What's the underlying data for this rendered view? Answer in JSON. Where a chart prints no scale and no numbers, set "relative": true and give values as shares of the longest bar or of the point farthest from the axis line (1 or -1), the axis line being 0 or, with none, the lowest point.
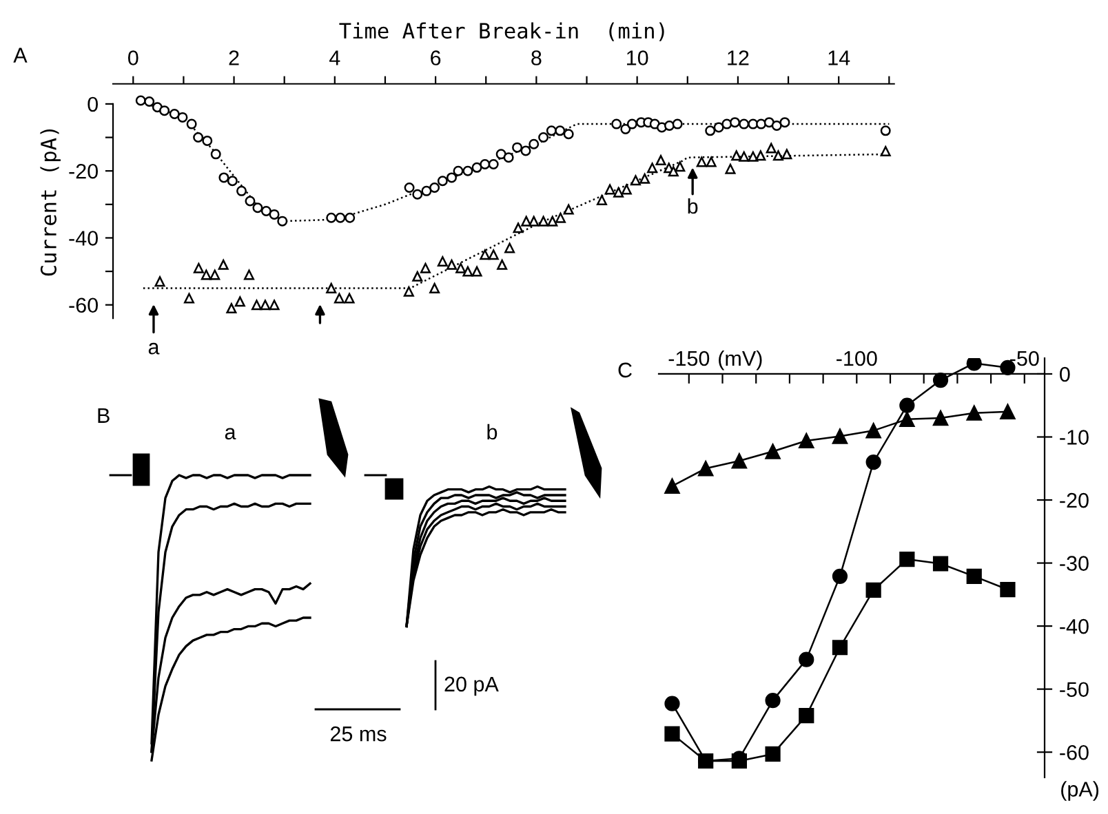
{
  "chart_data": [
    {
      "type": "scatter",
      "xlabel": "Time After Break-in  (min)",
      "ylabel": "Current (pA)",
      "xlim": [
        -0.4,
        15.1
      ],
      "ylim": [
        -64,
        6
      ],
      "xticks": [
        0,
        {
          "value": 1,
          "label": null
        },
        2,
        {
          "value": 3,
          "label": null
        },
        4,
        {
          "value": 5,
          "label": null
        },
        6,
        {
          "value": 7,
          "label": null
        },
        8,
        {
          "value": 9,
          "label": null
        },
        10,
        {
          "value": 11,
          "label": null
        },
        12,
        {
          "value": 13,
          "label": null
        },
        14,
        {
          "value": 15,
          "label": null
        }
      ],
      "yticks": [
        0,
        {
          "value": -10,
          "label": null
        },
        -20,
        {
          "value": -30,
          "label": null
        },
        -40,
        {
          "value": -50,
          "label": null
        },
        -60
      ],
      "grid": false,
      "series": [
        {
          "type": "scatter",
          "marker": "circle",
          "color": "#000000",
          "x": [
            0.15,
            0.32,
            0.48,
            0.62,
            0.82,
            0.98,
            1.16,
            1.29,
            1.47,
            1.64,
            1.8,
            1.97,
            2.15,
            2.32,
            2.47,
            2.64,
            2.8,
            2.96,
            3.93,
            4.11,
            4.3,
            5.48,
            5.64,
            5.82,
            5.98,
            6.14,
            6.32,
            6.45,
            6.64,
            6.82,
            6.98,
            7.15,
            7.3,
            7.45,
            7.62,
            7.79,
            7.95,
            8.14,
            8.3,
            8.47,
            8.64,
            9.59,
            9.77,
            9.9,
            10.08,
            10.22,
            10.35,
            10.49,
            10.64,
            10.8,
            11.45,
            11.62,
            11.78,
            11.94,
            12.12,
            12.3,
            12.46,
            12.62,
            12.77,
            12.93,
            14.93
          ],
          "values": [
            1,
            0.7,
            -1,
            -2,
            -3,
            -4,
            -6,
            -10,
            -11,
            -15,
            -22,
            -23,
            -26,
            -29,
            -31,
            -32,
            -33,
            -35,
            -34,
            -34,
            -34,
            -25,
            -27,
            -26,
            -25,
            -23,
            -22,
            -20,
            -20,
            -19,
            -18,
            -18,
            -15,
            -16,
            -13,
            -14,
            -12,
            -10,
            -8,
            -8,
            -9,
            -6,
            -7.5,
            -6,
            -5.5,
            -5.5,
            -6,
            -7,
            -6.5,
            -6,
            -8,
            -7,
            -6,
            -5.5,
            -6,
            -6,
            -6,
            -5.5,
            -6.5,
            -5.5,
            -8
          ]
        },
        {
          "type": "scatter",
          "marker": "triangle",
          "color": "#000000",
          "x": [
            0.53,
            1.11,
            1.3,
            1.45,
            1.62,
            1.79,
            1.95,
            2.12,
            2.3,
            2.45,
            2.62,
            2.8,
            3.93,
            4.09,
            4.29,
            5.47,
            5.64,
            5.8,
            5.98,
            6.14,
            6.32,
            6.5,
            6.64,
            6.82,
            6.98,
            7.15,
            7.32,
            7.47,
            7.64,
            7.8,
            7.95,
            8.14,
            8.32,
            8.48,
            8.64,
            9.3,
            9.46,
            9.63,
            9.79,
            9.97,
            10.15,
            10.3,
            10.47,
            10.63,
            10.72,
            10.85,
            11.28,
            11.47,
            11.85,
            11.97,
            12.12,
            12.3,
            12.45,
            12.66,
            12.8,
            12.97,
            14.93
          ],
          "values": [
            -53,
            -58,
            -49,
            -51,
            -51,
            -48,
            -61,
            -59,
            -51,
            -60,
            -60,
            -60,
            -55,
            -58,
            -58,
            -56,
            -51.5,
            -49,
            -55,
            -47,
            -48,
            -49,
            -50,
            -50,
            -45,
            -45,
            -48,
            -43,
            -37,
            -35,
            -35,
            -35,
            -35,
            -34,
            -31.5,
            -28.7,
            -25.5,
            -26.4,
            -25.5,
            -22.8,
            -22.3,
            -19.1,
            -16.8,
            -19.1,
            -20.1,
            -18.7,
            -17.3,
            -17.3,
            -19.4,
            -15.4,
            -15.7,
            -15.7,
            -15.4,
            -13.2,
            -15.4,
            -15,
            -14.1
          ]
        },
        {
          "type": "line",
          "marker": "none",
          "line_style": "dotted",
          "color": "#000000",
          "x": [
            0.1,
            1,
            1.6,
            2.5,
            3,
            4,
            5,
            6,
            7,
            8,
            8.8,
            15
          ],
          "values": [
            1,
            -4,
            -14,
            -31,
            -35,
            -34.5,
            -30,
            -24,
            -18,
            -12,
            -6,
            -6
          ]
        },
        {
          "type": "line",
          "marker": "none",
          "line_style": "dotted",
          "color": "#000000",
          "x": [
            0.2,
            5.5,
            8,
            10.9,
            11,
            15
          ],
          "values": [
            -55,
            -55,
            -36,
            -17,
            -16,
            -15
          ]
        }
      ],
      "annotations": [
        "A",
        "a",
        "b"
      ]
    },
    {
      "type": "line",
      "relative": true,
      "marker": "none",
      "line_style": "solid",
      "categories": [
        null,
        null,
        null,
        null,
        null,
        null,
        null,
        null,
        null,
        null,
        null,
        null,
        null,
        null,
        null,
        null,
        null,
        null,
        null,
        null,
        null,
        null,
        null,
        null,
        null,
        null,
        null,
        null,
        null,
        null,
        null,
        null,
        null,
        null,
        null,
        null,
        null,
        null,
        null,
        null,
        null,
        null,
        null,
        null,
        null,
        null,
        null,
        null,
        null,
        null,
        null,
        null,
        null,
        null,
        null,
        null,
        null,
        null,
        null,
        null,
        null
      ],
      "series": [
        {
          "color": "#000000",
          "values": [
            0.06,
            0.73,
            0.92,
            0.98,
            1,
            0.99,
            1,
            1,
            0.99,
            1,
            1,
            0.99,
            1,
            1,
            1,
            0.99,
            1,
            1,
            1,
            0.99,
            1,
            1,
            1,
            1,
            null,
            null,
            null,
            null,
            null,
            null,
            null,
            null,
            null,
            null,
            null,
            null,
            null,
            null,
            null,
            null,
            null,
            null,
            null,
            null,
            null,
            null,
            null,
            null,
            null,
            null,
            null,
            null,
            null,
            null,
            null,
            null,
            null,
            null,
            null,
            null,
            null
          ]
        },
        {
          "color": "#000000",
          "values": [
            0.03,
            0.52,
            0.73,
            0.82,
            0.86,
            0.88,
            0.88,
            0.89,
            0.89,
            0.88,
            0.89,
            0.89,
            0.9,
            0.89,
            0.89,
            0.9,
            0.89,
            0.89,
            0.9,
            0.9,
            0.89,
            0.9,
            0.9,
            0.9,
            null,
            null,
            null,
            null,
            null,
            null,
            null,
            null,
            null,
            null,
            null,
            null,
            null,
            null,
            null,
            null,
            null,
            null,
            null,
            null,
            null,
            null,
            null,
            null,
            null,
            null,
            null,
            null,
            null,
            null,
            null,
            null,
            null,
            null,
            null,
            null,
            null
          ]
        },
        {
          "color": "#000000",
          "values": [
            0.03,
            0.29,
            0.43,
            0.5,
            0.54,
            0.57,
            0.58,
            0.58,
            0.59,
            0.58,
            0.59,
            0.6,
            0.59,
            0.58,
            0.59,
            0.6,
            0.6,
            0.59,
            0.55,
            0.6,
            0.6,
            0.61,
            0.6,
            0.62,
            null,
            null,
            null,
            null,
            null,
            null,
            null,
            null,
            null,
            null,
            null,
            null,
            null,
            null,
            null,
            null,
            null,
            null,
            null,
            null,
            null,
            null,
            null,
            null,
            null,
            null,
            null,
            null,
            null,
            null,
            null,
            null,
            null,
            null,
            null,
            null,
            null
          ]
        },
        {
          "color": "#000000",
          "values": [
            0,
            0.16,
            0.26,
            0.32,
            0.37,
            0.4,
            0.42,
            0.43,
            0.44,
            0.44,
            0.45,
            0.45,
            0.46,
            0.46,
            0.47,
            0.47,
            0.48,
            0.48,
            0.47,
            0.48,
            0.49,
            0.49,
            0.5,
            0.5,
            null,
            null,
            null,
            null,
            null,
            null,
            null,
            null,
            null,
            null,
            null,
            null,
            null,
            null,
            null,
            null,
            null,
            null,
            null,
            null,
            null,
            null,
            null,
            null,
            null,
            null,
            null,
            null,
            null,
            null,
            null,
            null,
            null,
            null,
            null,
            null,
            null
          ]
        },
        {
          "color": "#000000",
          "values": [
            null,
            null,
            null,
            null,
            null,
            null,
            null,
            null,
            null,
            null,
            null,
            null,
            null,
            null,
            null,
            null,
            null,
            null,
            null,
            null,
            null,
            null,
            null,
            null,
            null,
            null,
            null,
            null,
            null,
            null,
            null,
            null,
            null,
            null,
            null,
            null,
            null,
            0.47,
            0.74,
            0.86,
            0.91,
            0.93,
            0.94,
            0.95,
            0.95,
            0.95,
            0.94,
            0.95,
            0.95,
            0.96,
            0.95,
            0.95,
            0.94,
            0.95,
            0.95,
            0.95,
            0.96,
            0.95,
            0.95,
            0.95,
            0.95
          ]
        },
        {
          "color": "#000000",
          "values": [
            null,
            null,
            null,
            null,
            null,
            null,
            null,
            null,
            null,
            null,
            null,
            null,
            null,
            null,
            null,
            null,
            null,
            null,
            null,
            null,
            null,
            null,
            null,
            null,
            null,
            null,
            null,
            null,
            null,
            null,
            null,
            null,
            null,
            null,
            null,
            null,
            null,
            0.47,
            0.7,
            0.82,
            0.87,
            0.9,
            0.92,
            0.92,
            0.93,
            0.93,
            0.92,
            0.93,
            0.93,
            0.93,
            0.92,
            0.93,
            0.93,
            0.94,
            0.93,
            0.93,
            0.92,
            0.93,
            0.93,
            0.93,
            0.93
          ]
        },
        {
          "color": "#000000",
          "values": [
            null,
            null,
            null,
            null,
            null,
            null,
            null,
            null,
            null,
            null,
            null,
            null,
            null,
            null,
            null,
            null,
            null,
            null,
            null,
            null,
            null,
            null,
            null,
            null,
            null,
            null,
            null,
            null,
            null,
            null,
            null,
            null,
            null,
            null,
            null,
            null,
            null,
            0.47,
            0.67,
            0.78,
            0.84,
            0.87,
            0.89,
            0.9,
            0.9,
            0.91,
            0.91,
            0.9,
            0.91,
            0.91,
            0.91,
            0.92,
            0.91,
            0.91,
            0.9,
            0.91,
            0.91,
            0.92,
            0.91,
            0.91,
            0.91
          ]
        },
        {
          "color": "#000000",
          "values": [
            null,
            null,
            null,
            null,
            null,
            null,
            null,
            null,
            null,
            null,
            null,
            null,
            null,
            null,
            null,
            null,
            null,
            null,
            null,
            null,
            null,
            null,
            null,
            null,
            null,
            null,
            null,
            null,
            null,
            null,
            null,
            null,
            null,
            null,
            null,
            null,
            null,
            0.47,
            0.65,
            0.75,
            0.81,
            0.84,
            0.86,
            0.87,
            0.88,
            0.89,
            0.89,
            0.88,
            0.89,
            0.89,
            0.9,
            0.89,
            0.89,
            0.88,
            0.89,
            0.89,
            0.9,
            0.89,
            0.89,
            0.89,
            0.89
          ]
        },
        {
          "color": "#000000",
          "values": [
            null,
            null,
            null,
            null,
            null,
            null,
            null,
            null,
            null,
            null,
            null,
            null,
            null,
            null,
            null,
            null,
            null,
            null,
            null,
            null,
            null,
            null,
            null,
            null,
            null,
            null,
            null,
            null,
            null,
            null,
            null,
            null,
            null,
            null,
            null,
            null,
            null,
            0.47,
            0.63,
            0.72,
            0.78,
            0.82,
            0.84,
            0.85,
            0.86,
            0.86,
            0.87,
            0.87,
            0.86,
            0.87,
            0.87,
            0.88,
            0.87,
            0.87,
            0.86,
            0.87,
            0.87,
            0.87,
            0.88,
            0.87,
            0.87
          ]
        }
      ],
      "annotations": [
        "B",
        "a",
        "b",
        "20 pA",
        "25 ms"
      ]
    },
    {
      "type": "line",
      "xlabel": "(mV)",
      "ylabel": "(pA)",
      "x": [
        -155,
        -145,
        -135,
        -125,
        -115,
        -105,
        -95,
        -85,
        -75,
        -65,
        -55
      ],
      "xlim": [
        -159,
        -44
      ],
      "ylim": [
        -64,
        2.5
      ],
      "xticks": [
        -150,
        {
          "value": -140,
          "label": null
        },
        {
          "value": -130,
          "label": null
        },
        {
          "value": -120,
          "label": null
        },
        {
          "value": -110,
          "label": null
        },
        -100,
        {
          "value": -90,
          "label": null
        },
        {
          "value": -80,
          "label": null
        },
        {
          "value": -70,
          "label": null
        },
        {
          "value": -60,
          "label": null
        },
        -50
      ],
      "yticks": [
        0,
        -10,
        -20,
        -30,
        -40,
        -50,
        -60
      ],
      "grid": false,
      "line_style": "solid",
      "series": [
        {
          "marker": "circle",
          "color": "#000000",
          "values": [
            -52.3,
            -61.4,
            -61,
            -51.8,
            -45.3,
            -32.1,
            -14,
            -5,
            -1,
            1.7,
            1
          ]
        },
        {
          "marker": "square",
          "color": "#000000",
          "values": [
            -57.1,
            -61.4,
            -61.4,
            -60.3,
            -54.2,
            -43.4,
            -34.3,
            -29.4,
            -30.1,
            -32.1,
            -34.2
          ]
        },
        {
          "marker": "triangle",
          "color": "#000000",
          "values": [
            -17.8,
            -15,
            -13.8,
            -12.3,
            -10.6,
            -9.9,
            -9,
            -7.2,
            -7,
            -6.2,
            -6
          ]
        }
      ],
      "annotations": [
        "C"
      ]
    }
  ]
}
